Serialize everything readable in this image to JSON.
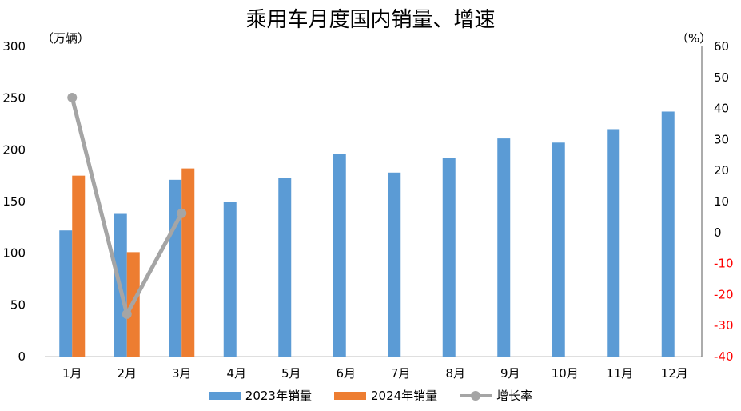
{
  "chart_data": {
    "type": "bar",
    "title": "乘用车月度国内销量、增速",
    "ylabel": "（万辆）",
    "y2label": "（%）",
    "categories": [
      "1月",
      "2月",
      "3月",
      "4月",
      "5月",
      "6月",
      "7月",
      "8月",
      "9月",
      "10月",
      "11月",
      "12月"
    ],
    "ylim": [
      0,
      300
    ],
    "yticks": [
      0,
      50,
      100,
      150,
      200,
      250,
      300
    ],
    "y2lim": [
      -40,
      60
    ],
    "y2ticks": [
      -40,
      -30,
      -20,
      -10,
      0,
      10,
      20,
      30,
      40,
      50,
      60
    ],
    "series": [
      {
        "name": "2023年销量",
        "type": "bar",
        "axis": "left",
        "color": "#5B9BD5",
        "values": [
          122,
          138,
          171,
          150,
          173,
          196,
          178,
          192,
          211,
          207,
          220,
          237
        ]
      },
      {
        "name": "2024年销量",
        "type": "bar",
        "axis": "left",
        "color": "#ED7D31",
        "values": [
          175,
          101,
          182,
          null,
          null,
          null,
          null,
          null,
          null,
          null,
          null,
          null
        ]
      },
      {
        "name": "增长率",
        "type": "line",
        "axis": "right",
        "color": "#A5A5A5",
        "values": [
          43.5,
          -26.3,
          6.2,
          null,
          null,
          null,
          null,
          null,
          null,
          null,
          null,
          null
        ]
      }
    ],
    "negative_tick_color": "#FF0000",
    "grid": false,
    "legend_position": "bottom"
  }
}
